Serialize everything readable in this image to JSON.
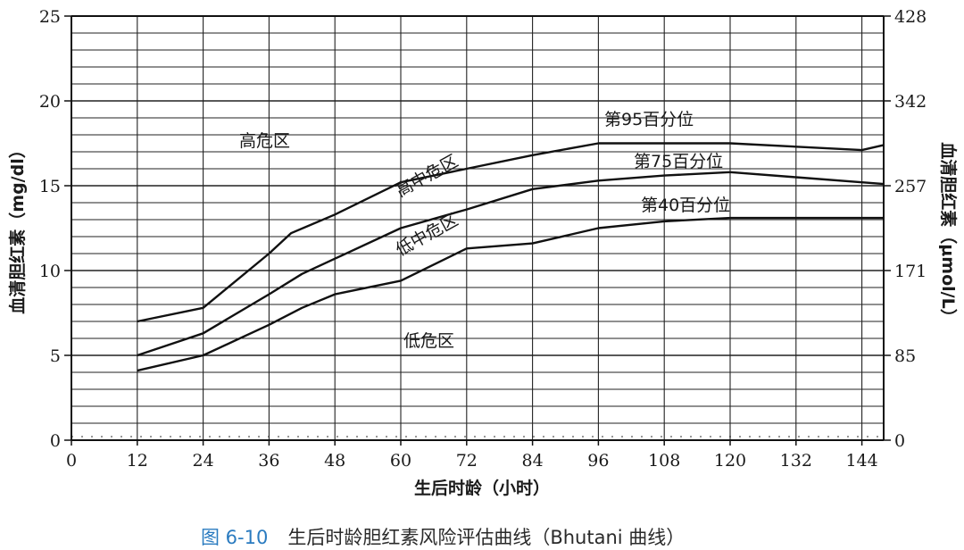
{
  "chart_data": {
    "type": "line",
    "x_label": "生后时龄（小时）",
    "y_label_left": "血清胆红素（mg/dl）",
    "y_label_right": "血清胆红素（μmol/L）",
    "x_ticks": [
      "0",
      "12",
      "24",
      "36",
      "48",
      "60",
      "72",
      "84",
      "96",
      "108",
      "120",
      "132",
      "144"
    ],
    "y_ticks_left": [
      "0",
      "5",
      "10",
      "15",
      "20",
      "25"
    ],
    "y_ticks_right": [
      "0",
      "85",
      "171",
      "257",
      "342",
      "428"
    ],
    "xlim": [
      0,
      148
    ],
    "ylim": [
      0,
      25
    ],
    "grid": true,
    "series": [
      {
        "name": "第95百分位",
        "x": [
          12,
          24,
          36,
          40,
          48,
          60,
          72,
          84,
          96,
          108,
          120,
          132,
          144,
          148
        ],
        "y": [
          7.0,
          7.8,
          11.0,
          12.2,
          13.3,
          15.2,
          16.0,
          16.8,
          17.5,
          17.5,
          17.5,
          17.3,
          17.1,
          17.4
        ]
      },
      {
        "name": "第75百分位",
        "x": [
          12,
          24,
          36,
          42,
          48,
          60,
          72,
          84,
          96,
          108,
          120,
          132,
          144,
          148
        ],
        "y": [
          5.0,
          6.3,
          8.6,
          9.8,
          10.7,
          12.5,
          13.6,
          14.8,
          15.3,
          15.6,
          15.8,
          15.5,
          15.2,
          15.1
        ]
      },
      {
        "name": "第40百分位",
        "x": [
          12,
          24,
          36,
          42,
          48,
          60,
          72,
          84,
          96,
          108,
          120,
          132,
          144,
          148
        ],
        "y": [
          4.1,
          5.0,
          6.8,
          7.8,
          8.6,
          9.4,
          11.3,
          11.6,
          12.5,
          12.9,
          13.1,
          13.1,
          13.1,
          13.1
        ]
      }
    ],
    "zones": [
      "高危区",
      "高中危区",
      "低中危区",
      "低危区"
    ]
  },
  "caption": {
    "figure_number": "图 6-10",
    "text": "生后时龄胆红素风险评估曲线（Bhutani 曲线）"
  }
}
